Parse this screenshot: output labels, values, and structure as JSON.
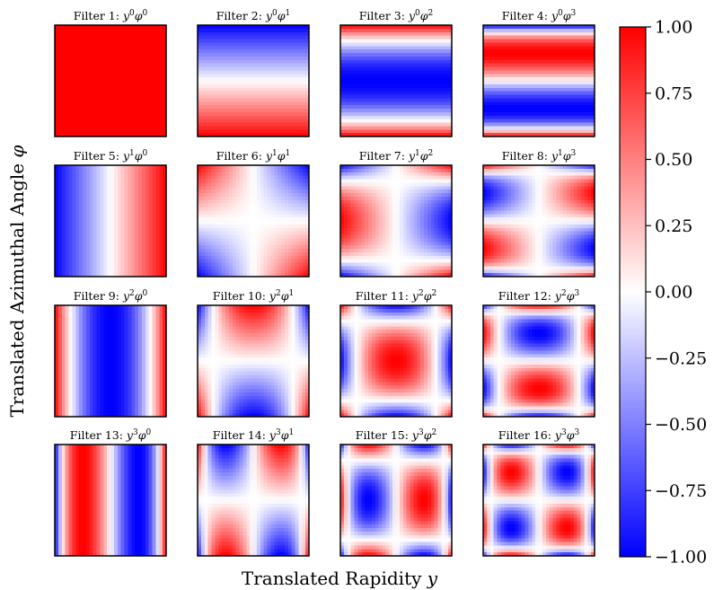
{
  "chart_data": {
    "type": "heatmap",
    "xlabel": "Translated Rapidity y",
    "ylabel": "Translated Azimuthal Angle φ",
    "colorbar": {
      "colormap": "bwr",
      "range": [
        -1.0,
        1.0
      ],
      "ticks": [
        1.0,
        0.75,
        0.5,
        0.25,
        0.0,
        -0.25,
        -0.5,
        -0.75,
        -1.0
      ],
      "tick_labels": [
        "1.00",
        "0.75",
        "0.50",
        "0.25",
        "0.00",
        "−0.25",
        "−0.50",
        "−0.75",
        "−1.00"
      ],
      "colors": {
        "low": "#0000ff",
        "mid": "#ffffff",
        "high": "#ff0000"
      }
    },
    "panels": [
      {
        "title": "Filter 1:",
        "y_power": 0,
        "phi_power": 0
      },
      {
        "title": "Filter 2:",
        "y_power": 0,
        "phi_power": 1
      },
      {
        "title": "Filter 3:",
        "y_power": 0,
        "phi_power": 2
      },
      {
        "title": "Filter 4:",
        "y_power": 0,
        "phi_power": 3
      },
      {
        "title": "Filter 5:",
        "y_power": 1,
        "phi_power": 0
      },
      {
        "title": "Filter 6:",
        "y_power": 1,
        "phi_power": 1
      },
      {
        "title": "Filter 7:",
        "y_power": 1,
        "phi_power": 2
      },
      {
        "title": "Filter 8:",
        "y_power": 1,
        "phi_power": 3
      },
      {
        "title": "Filter 9:",
        "y_power": 2,
        "phi_power": 0
      },
      {
        "title": "Filter 10:",
        "y_power": 2,
        "phi_power": 1
      },
      {
        "title": "Filter 11:",
        "y_power": 2,
        "phi_power": 2
      },
      {
        "title": "Filter 12:",
        "y_power": 2,
        "phi_power": 3
      },
      {
        "title": "Filter 13:",
        "y_power": 3,
        "phi_power": 0
      },
      {
        "title": "Filter 14:",
        "y_power": 3,
        "phi_power": 1
      },
      {
        "title": "Filter 15:",
        "y_power": 3,
        "phi_power": 2
      },
      {
        "title": "Filter 16:",
        "y_power": 3,
        "phi_power": 3
      }
    ]
  }
}
